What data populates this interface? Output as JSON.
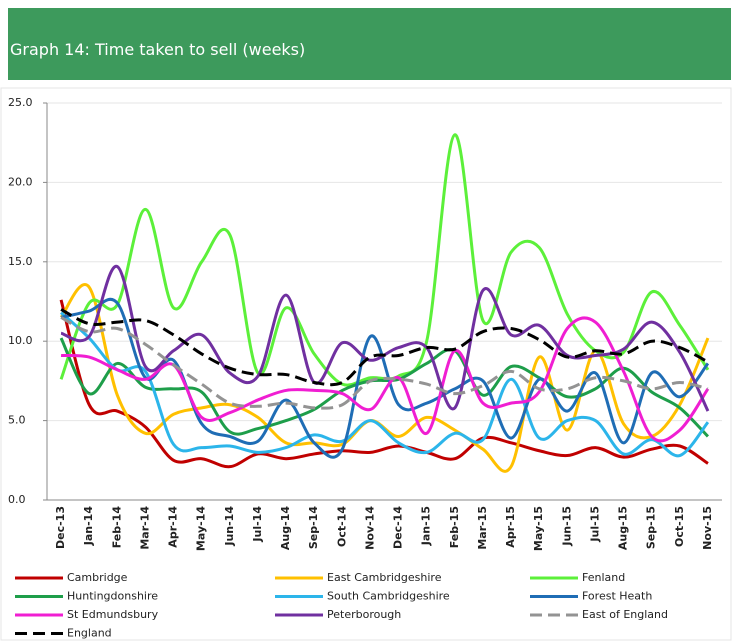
{
  "chart_data": {
    "type": "line",
    "title": "Graph 14: Time taken to sell (weeks)",
    "categories": [
      "Dec-13",
      "Jan-14",
      "Feb-14",
      "Mar-14",
      "Apr-14",
      "May-14",
      "Jun-14",
      "Jul-14",
      "Aug-14",
      "Sep-14",
      "Oct-14",
      "Nov-14",
      "Dec-14",
      "Jan-15",
      "Feb-15",
      "Mar-15",
      "Apr-15",
      "May-15",
      "Jun-15",
      "Jul-15",
      "Aug-15",
      "Sep-15",
      "Oct-15",
      "Nov-15"
    ],
    "ylim": [
      0,
      25
    ],
    "yticks": [
      {
        "value": 0,
        "label": "0.0"
      },
      {
        "value": 5,
        "label": "5.0"
      },
      {
        "value": 10,
        "label": "10.0"
      },
      {
        "value": 15,
        "label": "15.0"
      },
      {
        "value": 20,
        "label": "20.0"
      },
      {
        "value": 25,
        "label": "25.0"
      }
    ],
    "grid": true,
    "series": [
      {
        "name": "Cambridge",
        "color": "#c00000",
        "line_style": "solid",
        "values": [
          12.6,
          6.0,
          5.6,
          4.6,
          2.5,
          2.6,
          2.1,
          2.9,
          2.6,
          2.9,
          3.1,
          3.0,
          3.4,
          3.0,
          2.6,
          3.9,
          3.6,
          3.1,
          2.8,
          3.3,
          2.7,
          3.2,
          3.4,
          2.3
        ]
      },
      {
        "name": "East Cambridgeshire",
        "color": "#ffc000",
        "line_style": "solid",
        "values": [
          11.5,
          13.4,
          6.6,
          4.2,
          5.4,
          5.8,
          6.0,
          5.2,
          3.6,
          3.6,
          3.5,
          5.0,
          4.0,
          5.2,
          4.4,
          3.2,
          2.1,
          9.0,
          4.4,
          9.4,
          4.8,
          4.0,
          6.0,
          10.2
        ]
      },
      {
        "name": "Fenland",
        "color": "#5cf03a",
        "line_style": "solid",
        "values": [
          7.6,
          12.4,
          12.3,
          18.3,
          12.1,
          15.0,
          16.7,
          8.0,
          12.1,
          9.2,
          7.3,
          7.7,
          7.8,
          10.0,
          23.0,
          11.3,
          15.6,
          15.9,
          11.7,
          9.4,
          9.3,
          13.1,
          11.0,
          8.2
        ]
      },
      {
        "name": "Huntingdonshire",
        "color": "#1e9e4a",
        "line_style": "solid",
        "values": [
          10.2,
          6.7,
          8.6,
          7.1,
          7.0,
          6.8,
          4.3,
          4.5,
          5.0,
          5.7,
          6.9,
          7.5,
          7.6,
          8.6,
          9.4,
          6.6,
          8.4,
          7.7,
          6.5,
          7.0,
          8.3,
          6.8,
          5.8,
          4.0
        ]
      },
      {
        "name": "South Cambridgeshire",
        "color": "#2cb5ea",
        "line_style": "solid",
        "values": [
          11.8,
          10.2,
          8.2,
          8.1,
          3.5,
          3.3,
          3.4,
          3.0,
          3.3,
          4.1,
          3.7,
          5.0,
          3.6,
          3.0,
          4.2,
          3.8,
          7.6,
          3.9,
          5.0,
          5.0,
          2.9,
          3.8,
          2.8,
          4.9
        ]
      },
      {
        "name": "Forest Heath",
        "color": "#1f6db5",
        "line_style": "solid",
        "values": [
          11.5,
          11.9,
          12.4,
          7.7,
          8.8,
          4.8,
          4.0,
          3.7,
          6.3,
          3.6,
          3.2,
          10.3,
          6.0,
          6.1,
          7.0,
          7.5,
          3.9,
          7.6,
          5.6,
          8.0,
          3.6,
          8.0,
          6.5,
          8.6
        ]
      },
      {
        "name": "St Edmundsbury",
        "color": "#f01ed2",
        "line_style": "solid",
        "values": [
          9.1,
          9.0,
          8.2,
          7.6,
          8.5,
          5.2,
          5.5,
          6.3,
          6.9,
          6.9,
          6.7,
          5.7,
          7.7,
          4.2,
          9.4,
          6.1,
          6.1,
          6.8,
          10.8,
          11.2,
          8.1,
          4.0,
          4.4,
          7.0
        ]
      },
      {
        "name": "Peterborough",
        "color": "#7030a0",
        "line_style": "solid",
        "values": [
          10.5,
          10.3,
          14.7,
          8.4,
          9.4,
          10.4,
          8.0,
          7.8,
          12.9,
          7.4,
          9.9,
          8.8,
          9.6,
          9.6,
          5.8,
          13.2,
          10.4,
          11.0,
          9.1,
          9.1,
          9.5,
          11.2,
          9.3,
          5.6
        ]
      },
      {
        "name": "East of England",
        "color": "#939393",
        "line_style": "dashed",
        "values": [
          11.5,
          10.6,
          10.8,
          9.8,
          8.5,
          7.3,
          6.1,
          5.9,
          6.1,
          5.8,
          6.0,
          7.5,
          7.6,
          7.3,
          6.7,
          7.2,
          8.1,
          7.0,
          7.0,
          7.7,
          7.5,
          7.0,
          7.4,
          7.0
        ]
      },
      {
        "name": "England",
        "color": "#000000",
        "line_style": "dashed",
        "values": [
          12.0,
          11.1,
          11.2,
          11.3,
          10.4,
          9.2,
          8.3,
          7.9,
          7.9,
          7.4,
          7.4,
          9.0,
          9.1,
          9.6,
          9.5,
          10.6,
          10.8,
          10.1,
          9.0,
          9.4,
          9.2,
          10.0,
          9.6,
          8.7
        ]
      }
    ]
  }
}
